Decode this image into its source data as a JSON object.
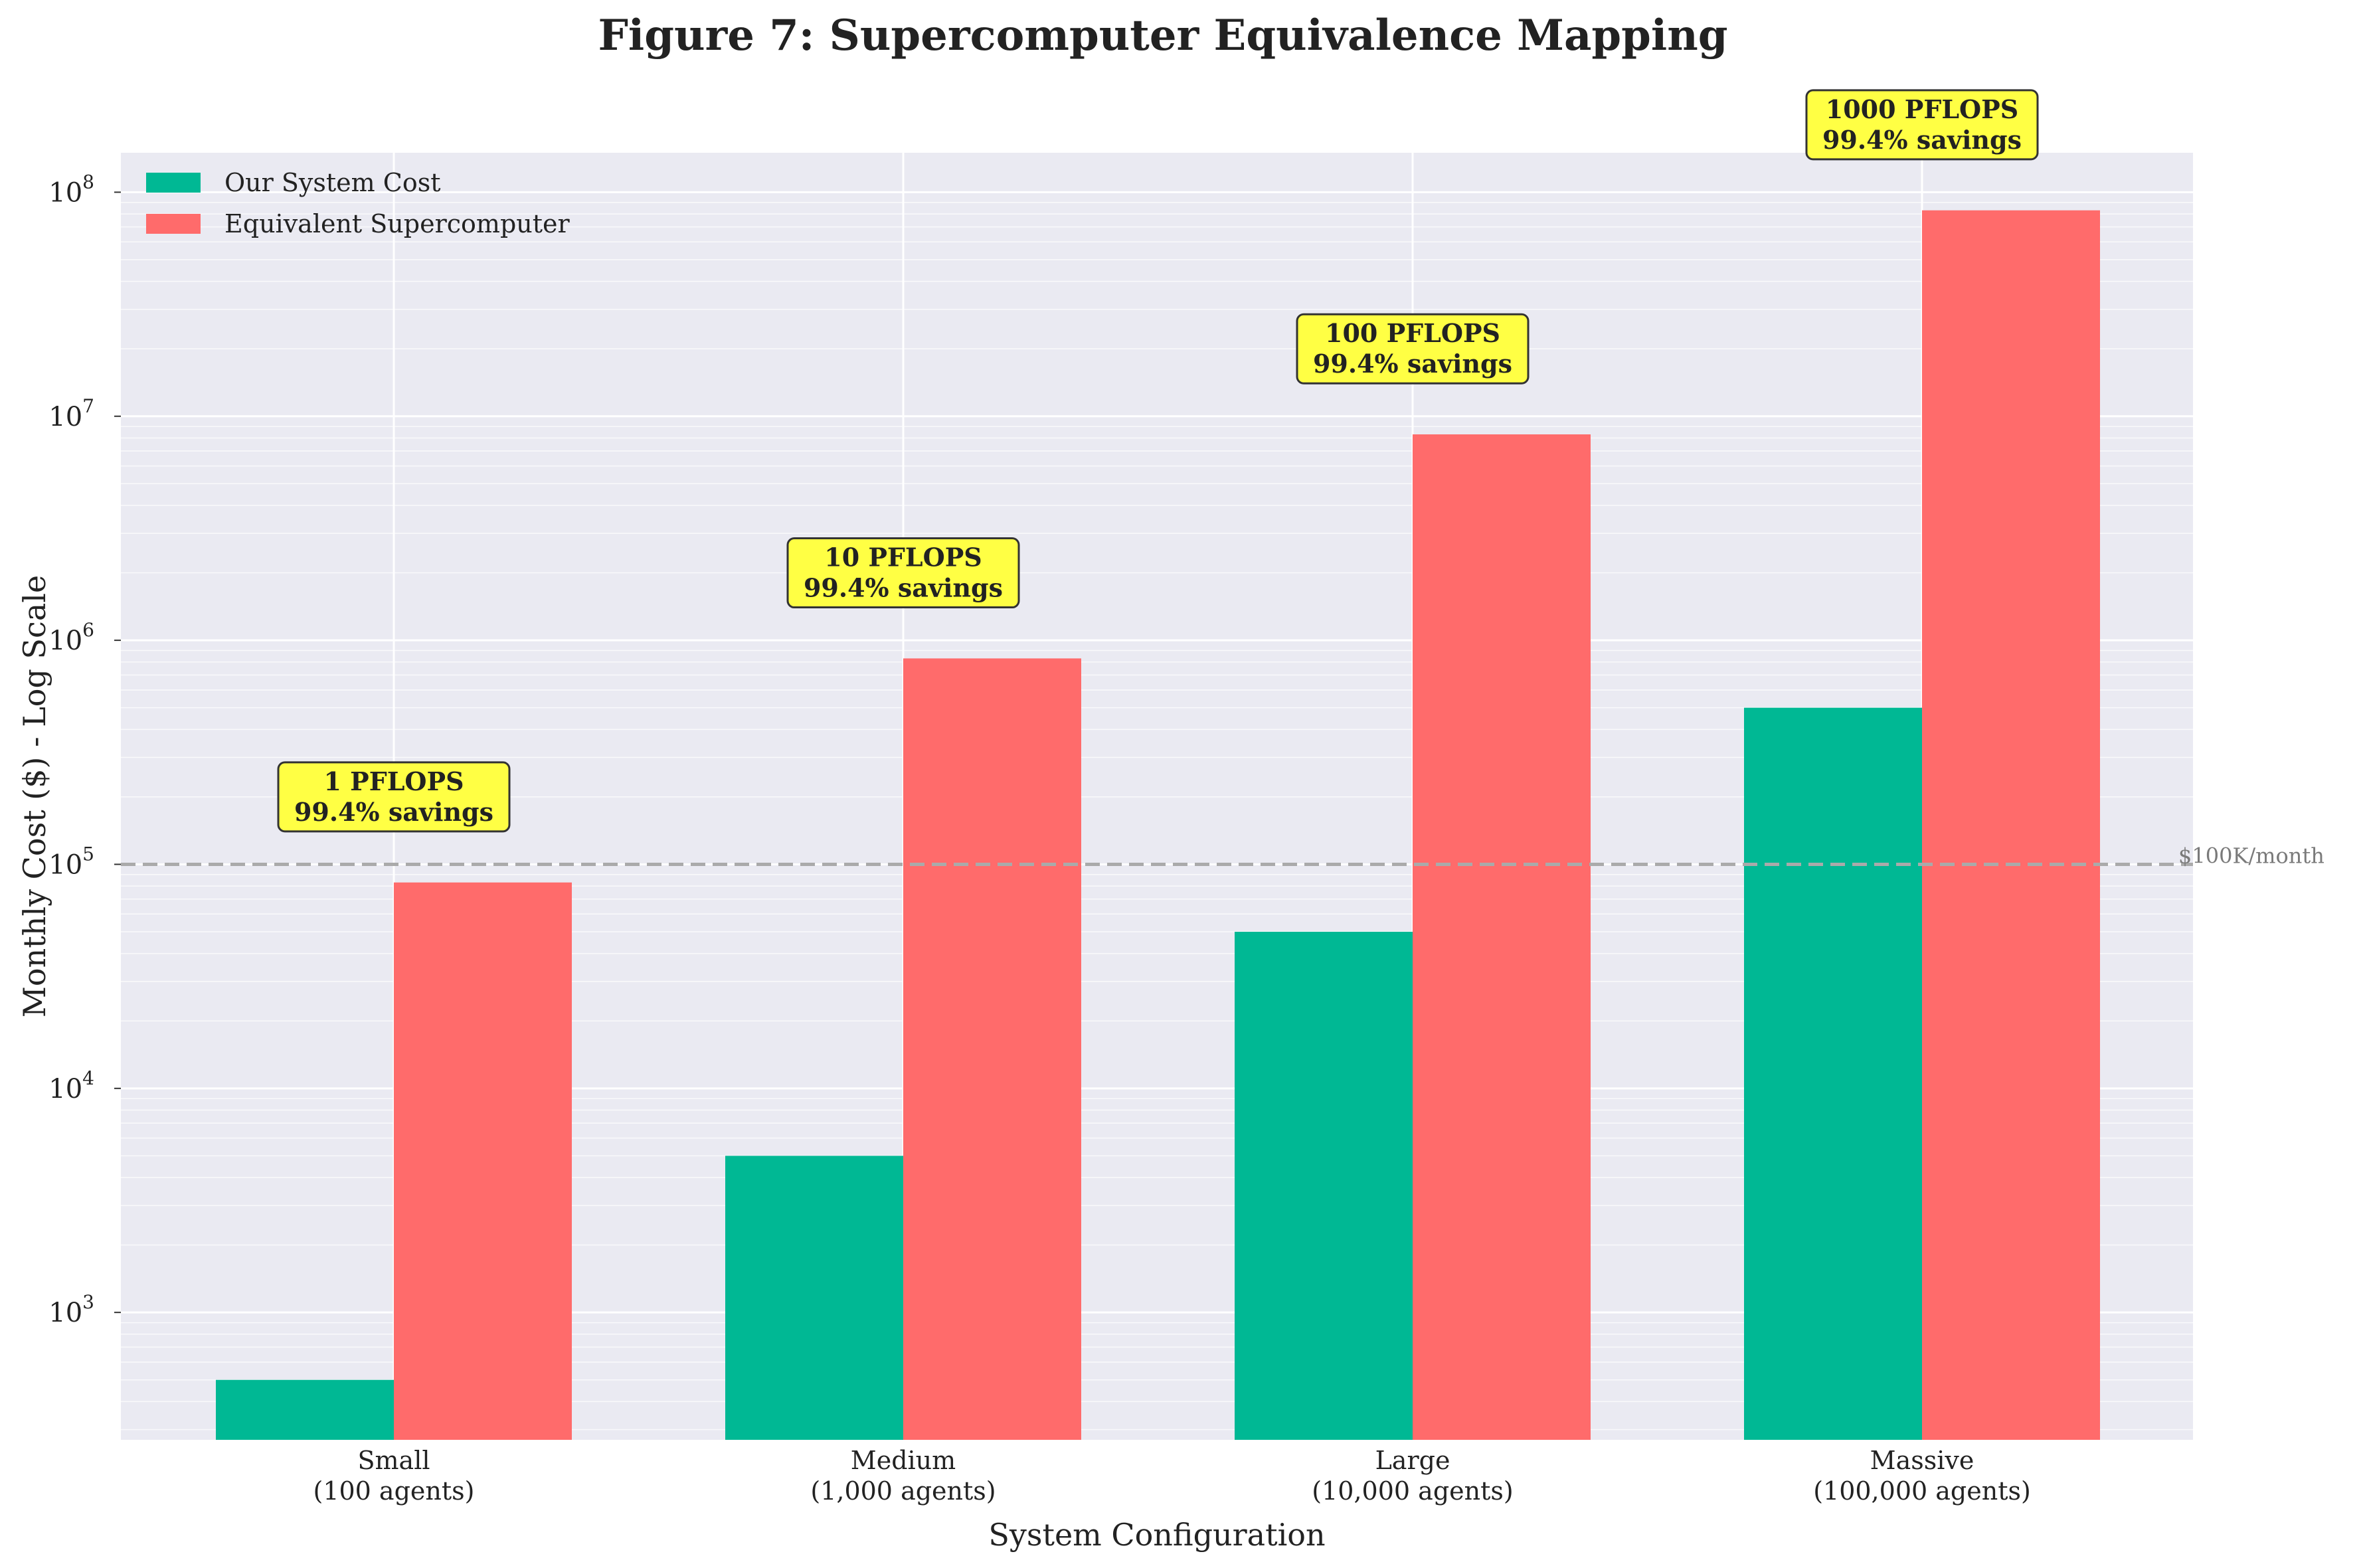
{
  "chart_data": {
    "type": "bar",
    "title": "Figure 7: Supercomputer Equivalence Mapping",
    "xlabel": "System Configuration",
    "ylabel": "Monthly Cost ($) - Log Scale",
    "yscale": "log",
    "ylim": [
      270,
      150000000
    ],
    "y_ticks": [
      {
        "value": 1000,
        "base": "10",
        "exp": "3"
      },
      {
        "value": 10000,
        "base": "10",
        "exp": "4"
      },
      {
        "value": 100000,
        "base": "10",
        "exp": "5"
      },
      {
        "value": 1000000,
        "base": "10",
        "exp": "6"
      },
      {
        "value": 10000000,
        "base": "10",
        "exp": "7"
      },
      {
        "value": 100000000,
        "base": "10",
        "exp": "8"
      }
    ],
    "categories": [
      [
        "Small",
        "(100 agents)"
      ],
      [
        "Medium",
        "(1,000 agents)"
      ],
      [
        "Large",
        "(10,000 agents)"
      ],
      [
        "Massive",
        "(100,000 agents)"
      ]
    ],
    "series": [
      {
        "name": "Our System Cost",
        "color": "#00b894",
        "values": [
          500,
          5000,
          50000,
          500000
        ]
      },
      {
        "name": "Equivalent Supercomputer",
        "color": "#ff6b6b",
        "values": [
          83000,
          830000,
          8300000,
          83000000
        ]
      }
    ],
    "annotations": [
      {
        "category_index": 0,
        "line1": "1 PFLOPS",
        "line2": "99.4% savings",
        "y": 200000
      },
      {
        "category_index": 1,
        "line1": "10 PFLOPS",
        "line2": "99.4% savings",
        "y": 2000000
      },
      {
        "category_index": 2,
        "line1": "100 PFLOPS",
        "line2": "99.4% savings",
        "y": 20000000
      },
      {
        "category_index": 3,
        "line1": "1000 PFLOPS",
        "line2": "99.4% savings",
        "y": 200000000
      }
    ],
    "reference_line": {
      "value": 100000,
      "label": "$100K/month",
      "color": "#aaaaaa"
    },
    "annotation_box_color": "#ffff44",
    "legend_placement": "top-left",
    "grid": true,
    "background": "#eaeaf2"
  }
}
